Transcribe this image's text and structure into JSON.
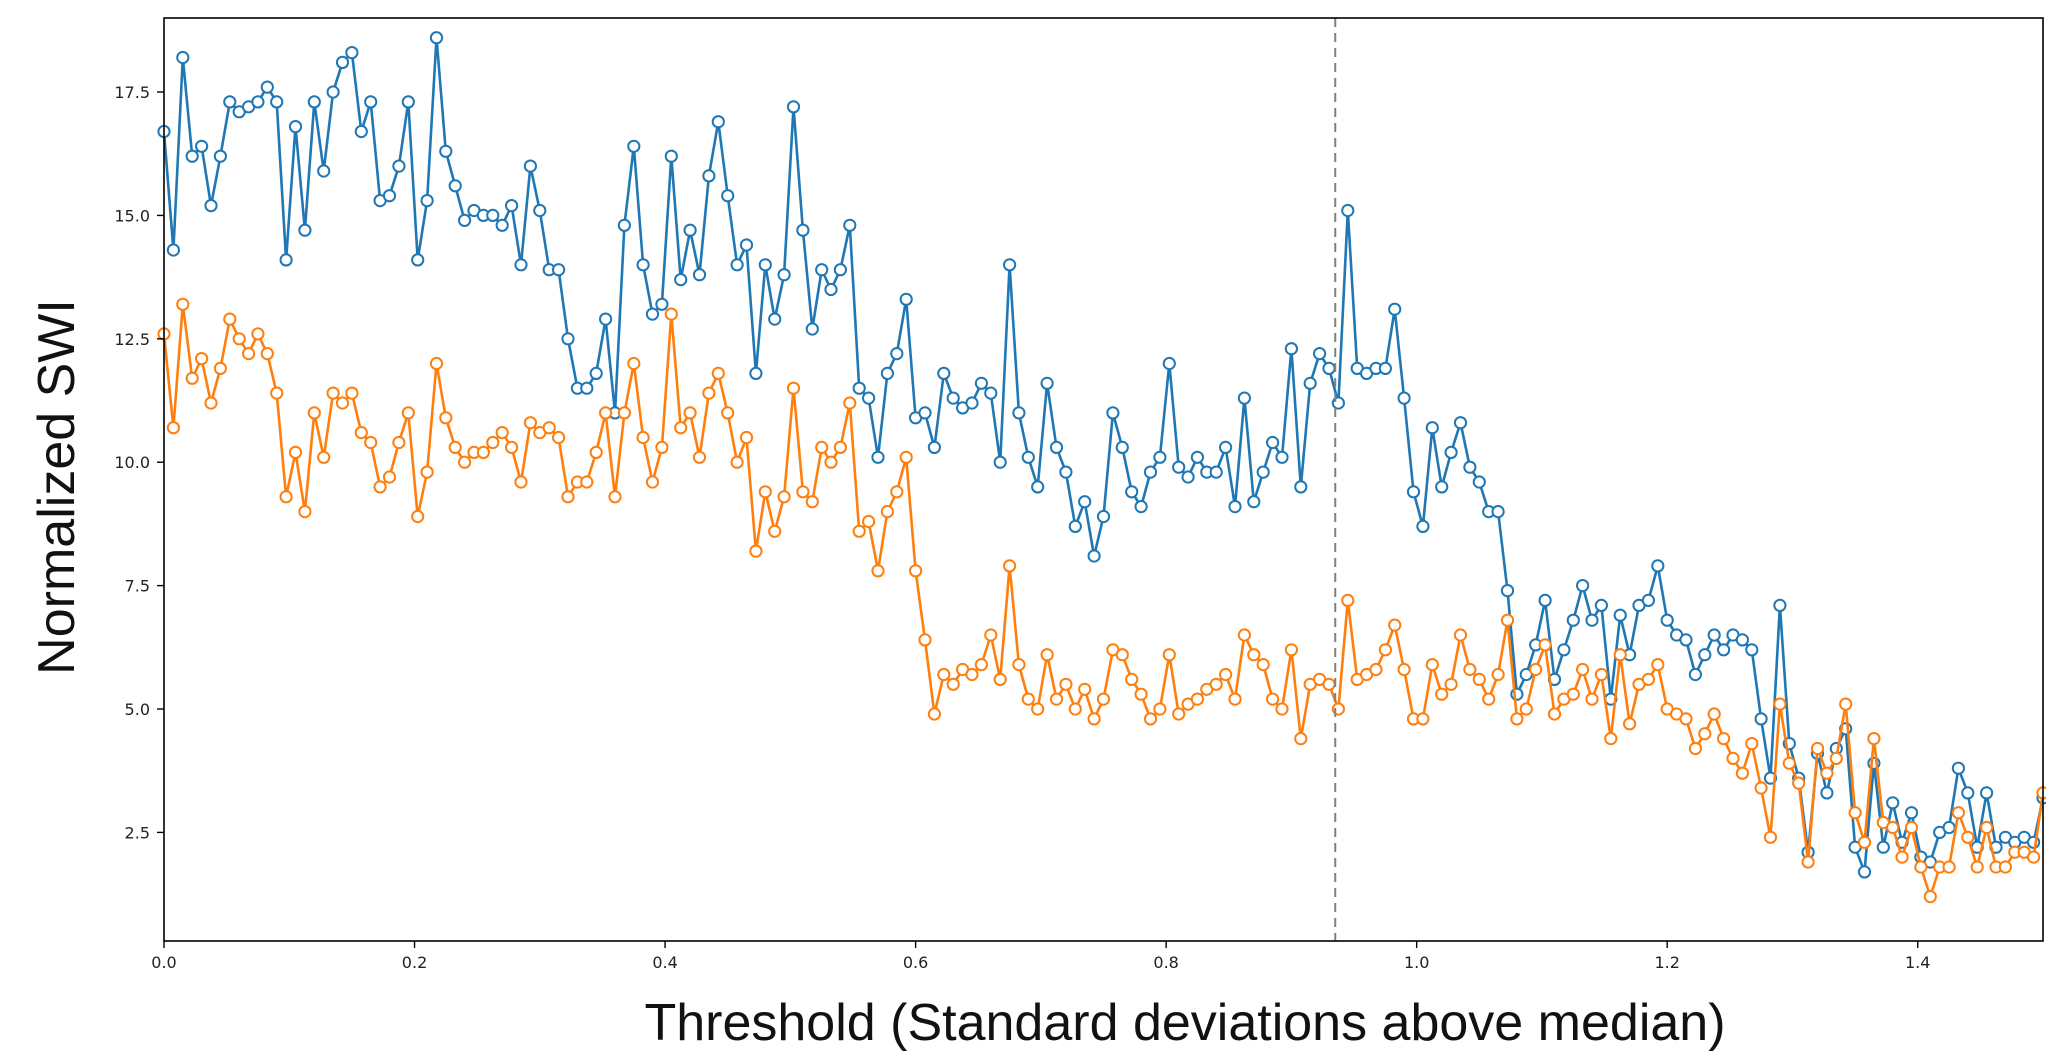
{
  "chart_data": {
    "type": "line",
    "title": "",
    "xlabel": "Threshold (Standard deviations above median)",
    "ylabel": "Normalized SWI",
    "xlim": [
      0.0,
      1.5
    ],
    "ylim": [
      0.3,
      19.0
    ],
    "x_ticks": [
      0.0,
      0.2,
      0.4,
      0.6,
      0.8,
      1.0,
      1.2,
      1.4
    ],
    "x_tick_labels": [
      "0.0",
      "0.2",
      "0.4",
      "0.6",
      "0.8",
      "1.0",
      "1.2",
      "1.4"
    ],
    "y_ticks": [
      2.5,
      5.0,
      7.5,
      10.0,
      12.5,
      15.0,
      17.5
    ],
    "y_tick_labels": [
      "2.5",
      "5.0",
      "7.5",
      "10.0",
      "12.5",
      "15.0",
      "17.5"
    ],
    "reference_line": {
      "x": 0.935,
      "style": "dashed",
      "color": "#808080"
    },
    "grid": false,
    "markers": "open-circle",
    "series": [
      {
        "color": "#1f77b4",
        "x": [
          0.0,
          0.0075,
          0.015,
          0.0225,
          0.03,
          0.0375,
          0.045,
          0.0525,
          0.06,
          0.0675,
          0.075,
          0.0825,
          0.09,
          0.0975,
          0.105,
          0.1125,
          0.12,
          0.1275,
          0.135,
          0.1425,
          0.15,
          0.1575,
          0.165,
          0.1725,
          0.18,
          0.1875,
          0.195,
          0.2025,
          0.21,
          0.2175,
          0.225,
          0.2325,
          0.24,
          0.2475,
          0.255,
          0.2625,
          0.27,
          0.2775,
          0.285,
          0.2925,
          0.3,
          0.3075,
          0.315,
          0.3225,
          0.33,
          0.3375,
          0.345,
          0.3525,
          0.36,
          0.3675,
          0.375,
          0.3825,
          0.39,
          0.3975,
          0.405,
          0.4125,
          0.42,
          0.4275,
          0.435,
          0.4425,
          0.45,
          0.4575,
          0.465,
          0.4725,
          0.48,
          0.4875,
          0.495,
          0.5025,
          0.51,
          0.5175,
          0.525,
          0.5325,
          0.54,
          0.5475,
          0.555,
          0.5625,
          0.57,
          0.5775,
          0.585,
          0.5925,
          0.6,
          0.6075,
          0.615,
          0.6225,
          0.63,
          0.6375,
          0.645,
          0.6525,
          0.66,
          0.6675,
          0.675,
          0.6825,
          0.69,
          0.6975,
          0.705,
          0.7125,
          0.72,
          0.7275,
          0.735,
          0.7425,
          0.75,
          0.7575,
          0.765,
          0.7725,
          0.78,
          0.7875,
          0.795,
          0.8025,
          0.81,
          0.8175,
          0.825,
          0.8325,
          0.84,
          0.8475,
          0.855,
          0.8625,
          0.87,
          0.8775,
          0.885,
          0.8925,
          0.9,
          0.9075,
          0.915,
          0.9225,
          0.93,
          0.9375,
          0.945,
          0.9525,
          0.96,
          0.9675,
          0.975,
          0.9825,
          0.99,
          0.9975,
          1.005,
          1.0125,
          1.02,
          1.0275,
          1.035,
          1.0425,
          1.05,
          1.0575,
          1.065,
          1.0725,
          1.08,
          1.0875,
          1.095,
          1.1025,
          1.11,
          1.1175,
          1.125,
          1.1325,
          1.14,
          1.1475,
          1.155,
          1.1625,
          1.17,
          1.1775,
          1.185,
          1.1925,
          1.2,
          1.2075,
          1.215,
          1.2225,
          1.23,
          1.2375,
          1.245,
          1.2525,
          1.26,
          1.2675,
          1.275,
          1.2825,
          1.29,
          1.2975,
          1.305,
          1.3125,
          1.32,
          1.3275,
          1.335,
          1.3425,
          1.35,
          1.3575,
          1.365,
          1.3725,
          1.38,
          1.3875,
          1.395,
          1.4025,
          1.41,
          1.4175,
          1.425,
          1.4325,
          1.44,
          1.4475,
          1.455,
          1.4625,
          1.47,
          1.4775,
          1.485,
          1.4925,
          1.5
        ],
        "values": [
          16.7,
          14.3,
          18.2,
          16.2,
          16.4,
          15.2,
          16.2,
          17.3,
          17.1,
          17.2,
          17.3,
          17.6,
          17.3,
          14.1,
          16.8,
          14.7,
          17.3,
          15.9,
          17.5,
          18.1,
          18.3,
          16.7,
          17.3,
          15.3,
          15.4,
          16.0,
          17.3,
          14.1,
          15.3,
          18.6,
          16.3,
          15.6,
          14.9,
          15.1,
          15.0,
          15.0,
          14.8,
          15.2,
          14.0,
          16.0,
          15.1,
          13.9,
          13.9,
          12.5,
          11.5,
          11.5,
          11.8,
          12.9,
          11.0,
          14.8,
          16.4,
          14.0,
          13.0,
          13.2,
          16.2,
          13.7,
          14.7,
          13.8,
          15.8,
          16.9,
          15.4,
          14.0,
          14.4,
          11.8,
          14.0,
          12.9,
          13.8,
          17.2,
          14.7,
          12.7,
          13.9,
          13.5,
          13.9,
          14.8,
          11.5,
          11.3,
          10.1,
          11.8,
          12.2,
          13.3,
          10.9,
          11.0,
          10.3,
          11.8,
          11.3,
          11.1,
          11.2,
          11.6,
          11.4,
          10.0,
          14.0,
          11.0,
          10.1,
          9.5,
          11.6,
          10.3,
          9.8,
          8.7,
          9.2,
          8.1,
          8.9,
          11.0,
          10.3,
          9.4,
          9.1,
          9.8,
          10.1,
          12.0,
          9.9,
          9.7,
          10.1,
          9.8,
          9.8,
          10.3,
          9.1,
          11.3,
          9.2,
          9.8,
          10.4,
          10.1,
          12.3,
          9.5,
          11.6,
          12.2,
          11.9,
          11.2,
          15.1,
          11.9,
          11.8,
          11.9,
          11.9,
          13.1,
          11.3,
          9.4,
          8.7,
          10.7,
          9.5,
          10.2,
          10.8,
          9.9,
          9.6,
          9.0,
          9.0,
          7.4,
          5.3,
          5.7,
          6.3,
          7.2,
          5.6,
          6.2,
          6.8,
          7.5,
          6.8,
          7.1,
          5.2,
          6.9,
          6.1,
          7.1,
          7.2,
          7.9,
          6.8,
          6.5,
          6.4,
          5.7,
          6.1,
          6.5,
          6.2,
          6.5,
          6.4,
          6.2,
          4.8,
          3.6,
          7.1,
          4.3,
          3.6,
          2.1,
          4.1,
          3.3,
          4.2,
          4.6,
          2.2,
          1.7,
          3.9,
          2.2,
          3.1,
          2.3,
          2.9,
          2.0,
          1.9,
          2.5,
          2.6,
          3.8,
          3.3,
          2.2,
          3.3,
          2.2,
          2.4,
          2.3,
          2.4,
          2.3,
          3.2
        ]
      },
      {
        "color": "#ff7f0e",
        "x": [
          0.0,
          0.0075,
          0.015,
          0.0225,
          0.03,
          0.0375,
          0.045,
          0.0525,
          0.06,
          0.0675,
          0.075,
          0.0825,
          0.09,
          0.0975,
          0.105,
          0.1125,
          0.12,
          0.1275,
          0.135,
          0.1425,
          0.15,
          0.1575,
          0.165,
          0.1725,
          0.18,
          0.1875,
          0.195,
          0.2025,
          0.21,
          0.2175,
          0.225,
          0.2325,
          0.24,
          0.2475,
          0.255,
          0.2625,
          0.27,
          0.2775,
          0.285,
          0.2925,
          0.3,
          0.3075,
          0.315,
          0.3225,
          0.33,
          0.3375,
          0.345,
          0.3525,
          0.36,
          0.3675,
          0.375,
          0.3825,
          0.39,
          0.3975,
          0.405,
          0.4125,
          0.42,
          0.4275,
          0.435,
          0.4425,
          0.45,
          0.4575,
          0.465,
          0.4725,
          0.48,
          0.4875,
          0.495,
          0.5025,
          0.51,
          0.5175,
          0.525,
          0.5325,
          0.54,
          0.5475,
          0.555,
          0.5625,
          0.57,
          0.5775,
          0.585,
          0.5925,
          0.6,
          0.6075,
          0.615,
          0.6225,
          0.63,
          0.6375,
          0.645,
          0.6525,
          0.66,
          0.6675,
          0.675,
          0.6825,
          0.69,
          0.6975,
          0.705,
          0.7125,
          0.72,
          0.7275,
          0.735,
          0.7425,
          0.75,
          0.7575,
          0.765,
          0.7725,
          0.78,
          0.7875,
          0.795,
          0.8025,
          0.81,
          0.8175,
          0.825,
          0.8325,
          0.84,
          0.8475,
          0.855,
          0.8625,
          0.87,
          0.8775,
          0.885,
          0.8925,
          0.9,
          0.9075,
          0.915,
          0.9225,
          0.93,
          0.9375,
          0.945,
          0.9525,
          0.96,
          0.9675,
          0.975,
          0.9825,
          0.99,
          0.9975,
          1.005,
          1.0125,
          1.02,
          1.0275,
          1.035,
          1.0425,
          1.05,
          1.0575,
          1.065,
          1.0725,
          1.08,
          1.0875,
          1.095,
          1.1025,
          1.11,
          1.1175,
          1.125,
          1.1325,
          1.14,
          1.1475,
          1.155,
          1.1625,
          1.17,
          1.1775,
          1.185,
          1.1925,
          1.2,
          1.2075,
          1.215,
          1.2225,
          1.23,
          1.2375,
          1.245,
          1.2525,
          1.26,
          1.2675,
          1.275,
          1.2825,
          1.29,
          1.2975,
          1.305,
          1.3125,
          1.32,
          1.3275,
          1.335,
          1.3425,
          1.35,
          1.3575,
          1.365,
          1.3725,
          1.38,
          1.3875,
          1.395,
          1.4025,
          1.41,
          1.4175,
          1.425,
          1.4325,
          1.44,
          1.4475,
          1.455,
          1.4625,
          1.47,
          1.4775,
          1.485,
          1.4925,
          1.5
        ],
        "values": [
          12.6,
          10.7,
          13.2,
          11.7,
          12.1,
          11.2,
          11.9,
          12.9,
          12.5,
          12.2,
          12.6,
          12.2,
          11.4,
          9.3,
          10.2,
          9.0,
          11.0,
          10.1,
          11.4,
          11.2,
          11.4,
          10.6,
          10.4,
          9.5,
          9.7,
          10.4,
          11.0,
          8.9,
          9.8,
          12.0,
          10.9,
          10.3,
          10.0,
          10.2,
          10.2,
          10.4,
          10.6,
          10.3,
          9.6,
          10.8,
          10.6,
          10.7,
          10.5,
          9.3,
          9.6,
          9.6,
          10.2,
          11.0,
          9.3,
          11.0,
          12.0,
          10.5,
          9.6,
          10.3,
          13.0,
          10.7,
          11.0,
          10.1,
          11.4,
          11.8,
          11.0,
          10.0,
          10.5,
          8.2,
          9.4,
          8.6,
          9.3,
          11.5,
          9.4,
          9.2,
          10.3,
          10.0,
          10.3,
          11.2,
          8.6,
          8.8,
          7.8,
          9.0,
          9.4,
          10.1,
          7.8,
          6.4,
          4.9,
          5.7,
          5.5,
          5.8,
          5.7,
          5.9,
          6.5,
          5.6,
          7.9,
          5.9,
          5.2,
          5.0,
          6.1,
          5.2,
          5.5,
          5.0,
          5.4,
          4.8,
          5.2,
          6.2,
          6.1,
          5.6,
          5.3,
          4.8,
          5.0,
          6.1,
          4.9,
          5.1,
          5.2,
          5.4,
          5.5,
          5.7,
          5.2,
          6.5,
          6.1,
          5.9,
          5.2,
          5.0,
          6.2,
          4.4,
          5.5,
          5.6,
          5.5,
          5.0,
          7.2,
          5.6,
          5.7,
          5.8,
          6.2,
          6.7,
          5.8,
          4.8,
          4.8,
          5.9,
          5.3,
          5.5,
          6.5,
          5.8,
          5.6,
          5.2,
          5.7,
          6.8,
          4.8,
          5.0,
          5.8,
          6.3,
          4.9,
          5.2,
          5.3,
          5.8,
          5.2,
          5.7,
          4.4,
          6.1,
          4.7,
          5.5,
          5.6,
          5.9,
          5.0,
          4.9,
          4.8,
          4.2,
          4.5,
          4.9,
          4.4,
          4.0,
          3.7,
          4.3,
          3.4,
          2.4,
          5.1,
          3.9,
          3.5,
          1.9,
          4.2,
          3.7,
          4.0,
          5.1,
          2.9,
          2.3,
          4.4,
          2.7,
          2.6,
          2.0,
          2.6,
          1.8,
          1.2,
          1.8,
          1.8,
          2.9,
          2.4,
          1.8,
          2.6,
          1.8,
          1.8,
          2.1,
          2.1,
          2.0,
          3.3
        ]
      }
    ]
  }
}
